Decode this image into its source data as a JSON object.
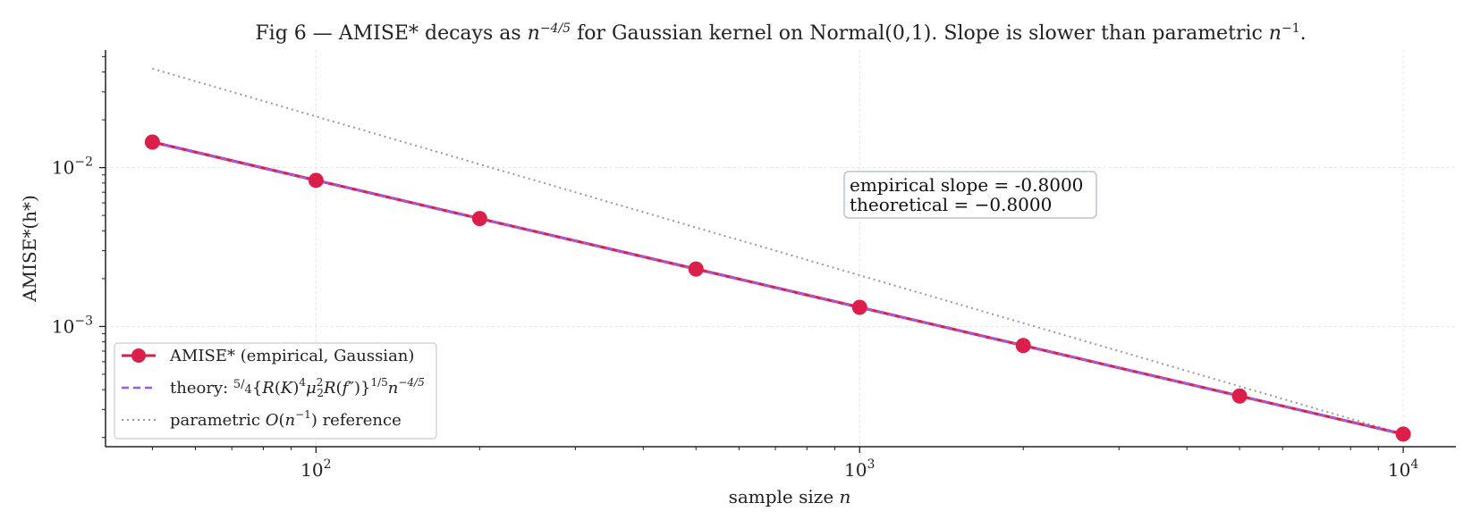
{
  "chart_data": {
    "type": "line",
    "title_parts": {
      "pre": "Fig 6 — AMISE* decays as ",
      "mid": " for Gaussian kernel on Normal(0,1). Slope is slower than parametric ",
      "post": "."
    },
    "xlabel": "sample size",
    "xlabel_var": "n",
    "ylabel": "AMISE*(h*)",
    "x_scale": "log",
    "y_scale": "log",
    "xlim": [
      41,
      12500
    ],
    "ylim": [
      0.000175,
      0.055
    ],
    "x_ticks": [
      {
        "value": 100,
        "label_base": "10",
        "label_exp": "2"
      },
      {
        "value": 1000,
        "label_base": "10",
        "label_exp": "3"
      },
      {
        "value": 10000,
        "label_base": "10",
        "label_exp": "4"
      }
    ],
    "y_ticks": [
      {
        "value": 0.01,
        "label_base": "10",
        "label_exp": "−2"
      },
      {
        "value": 0.001,
        "label_base": "10",
        "label_exp": "−3"
      }
    ],
    "grid": true,
    "legend_position": "lower-left",
    "series": [
      {
        "name": "AMISE* (empirical, Gaussian)",
        "style": "line-markers",
        "color": "#dc1f4a",
        "x": [
          50,
          100,
          200,
          500,
          1000,
          2000,
          5000,
          10000
        ],
        "y": [
          0.01449,
          0.00832,
          0.00478,
          0.0023,
          0.00132,
          0.000759,
          0.000365,
          0.00021
        ]
      },
      {
        "name": "theory: 5/4{R(K)^4 μ2^2 R(f'')}^{1/5} n^{-4/5}",
        "style": "dashed",
        "color": "#9a5cf0",
        "x": [
          50,
          100,
          200,
          500,
          1000,
          2000,
          5000,
          10000
        ],
        "y": [
          0.01449,
          0.00832,
          0.00478,
          0.0023,
          0.00132,
          0.000759,
          0.000365,
          0.00021
        ]
      },
      {
        "name": "parametric O(n^-1) reference",
        "style": "dotted",
        "color": "#999999",
        "x": [
          50,
          10000
        ],
        "y": [
          0.042,
          0.00021
        ]
      }
    ],
    "annotation": {
      "line1": "empirical slope = -0.8000",
      "line2": "theoretical = −0.8000"
    },
    "legend": {
      "entry1": "AMISE* (empirical, Gaussian)",
      "entry2_prefix": "theory: ",
      "entry3_pre": "parametric ",
      "entry3_post": " reference"
    }
  }
}
